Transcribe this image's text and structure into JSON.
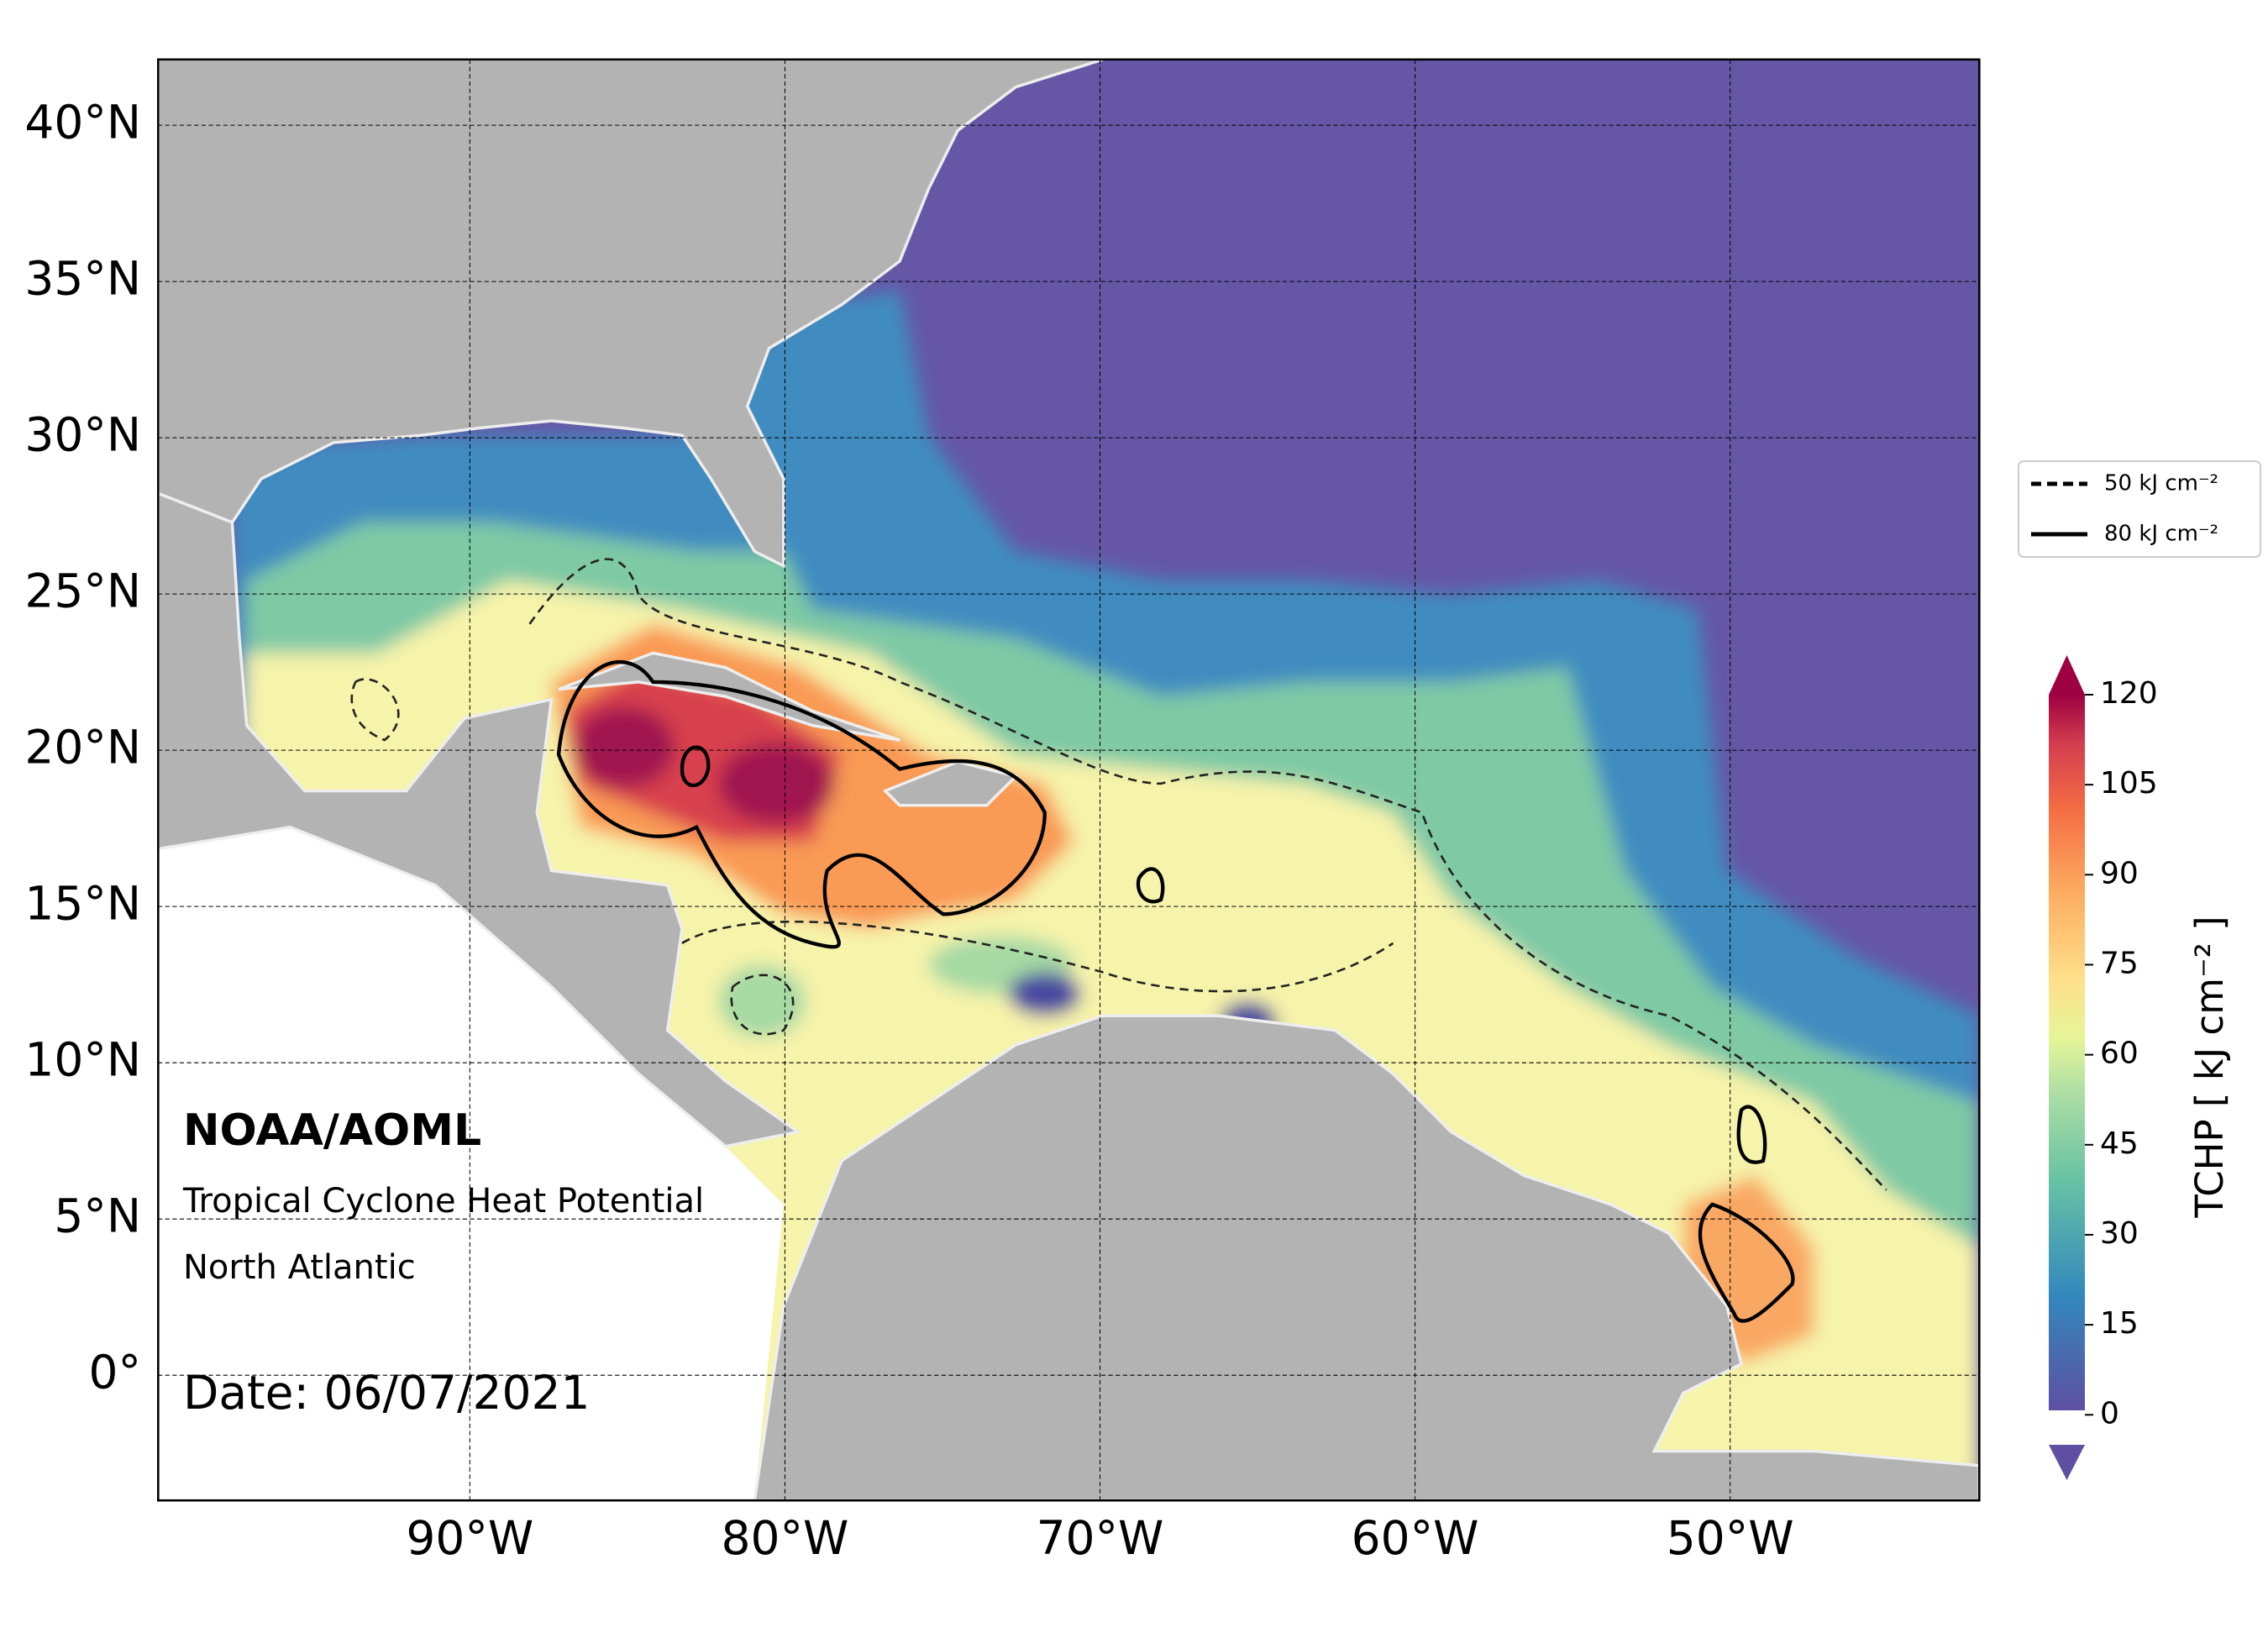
{
  "map": {
    "lon_range": [
      -99.9,
      -42.1
    ],
    "lat_range": [
      -4,
      42.1
    ],
    "lat_ticks": [
      {
        "value": 40,
        "label": "40°N"
      },
      {
        "value": 35,
        "label": "35°N"
      },
      {
        "value": 30,
        "label": "30°N"
      },
      {
        "value": 25,
        "label": "25°N"
      },
      {
        "value": 20,
        "label": "20°N"
      },
      {
        "value": 15,
        "label": "15°N"
      },
      {
        "value": 10,
        "label": "10°N"
      },
      {
        "value": 5,
        "label": "5°N"
      },
      {
        "value": 0,
        "label": "0°"
      }
    ],
    "lon_ticks": [
      {
        "value": -90,
        "label": "90°W"
      },
      {
        "value": -80,
        "label": "80°W"
      },
      {
        "value": -70,
        "label": "70°W"
      },
      {
        "value": -60,
        "label": "60°W"
      },
      {
        "value": -50,
        "label": "50°W"
      }
    ]
  },
  "annotation": {
    "agency": "NOAA/AOML",
    "product": "Tropical Cyclone Heat Potential",
    "region": "North Atlantic",
    "date": "Date: 06/07/2021"
  },
  "legend": [
    {
      "label": "50 kJ cm⁻²",
      "style": "dashed"
    },
    {
      "label": "80 kJ cm⁻²",
      "style": "solid"
    }
  ],
  "colorbar": {
    "label": "TCHP [ kJ cm⁻² ]",
    "range": [
      -5,
      120
    ],
    "ticks": [
      0,
      15,
      30,
      45,
      60,
      75,
      90,
      105,
      120
    ]
  }
}
